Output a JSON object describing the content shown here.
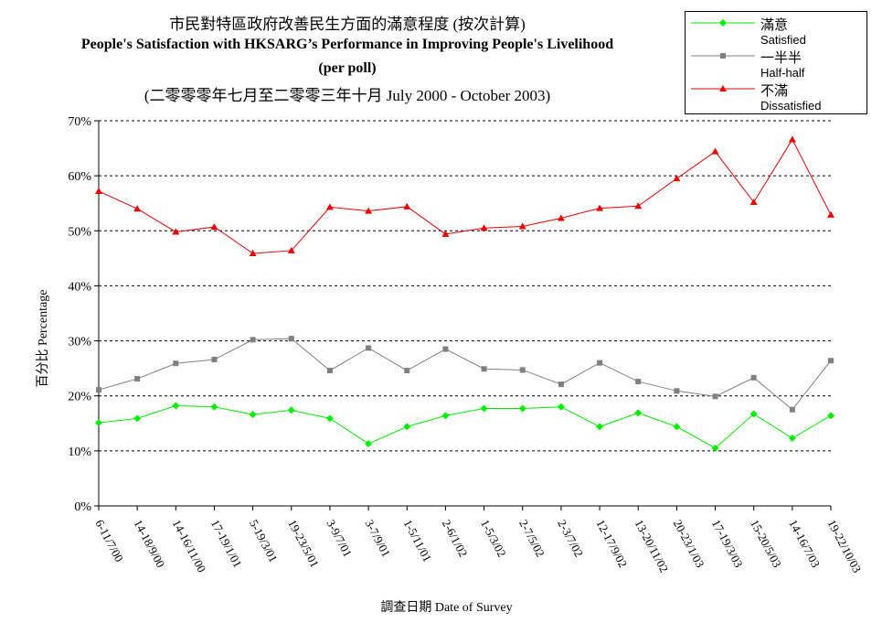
{
  "titles": {
    "line1": "市民對特區政府改善民生方面的滿意程度 (按次計算)",
    "line2": "People's Satisfaction with HKSARG’s Performance in Improving People's Livelihood",
    "line3": "(per poll)",
    "line4": "(二零零零年七月至二零零三年十月 July 2000 - October 2003)"
  },
  "legend": {
    "items": [
      {
        "zh": "滿意",
        "en": "Satisfied",
        "color": "#00ee00",
        "marker": "diamond"
      },
      {
        "zh": "一半半",
        "en": "Half-half",
        "color": "#808080",
        "marker": "square"
      },
      {
        "zh": "不滿",
        "en": "Dissatisfied",
        "color": "#ee0000",
        "marker": "triangle"
      }
    ]
  },
  "chart_data": {
    "type": "line",
    "title": "People's Satisfaction with HKSARG’s Performance in Improving People's Livelihood",
    "xlabel": "調查日期 Date of Survey",
    "ylabel": "百分比 Percentage",
    "ylim": [
      0,
      70
    ],
    "yticks": [
      "0%",
      "10%",
      "20%",
      "30%",
      "40%",
      "50%",
      "60%",
      "70%"
    ],
    "grid": true,
    "legend_position": "top-right",
    "categories": [
      "6-11/7/00",
      "14-18/9/00",
      "14-16/11/00",
      "17-19/1/01",
      "5-19/3/01",
      "19-23/5/01",
      "3-9/7/01",
      "3-7/9/01",
      "1-5/11/01",
      "2-6/1/02",
      "1-5/3/02",
      "2-7/5/02",
      "2-3/7/02",
      "12-17/9/02",
      "13-20/11/02",
      "20-23/1/03",
      "17-19/3/03",
      "15-20/5/03",
      "14-16/7/03",
      "19-22/10/03"
    ],
    "series": [
      {
        "name": "滿意 Satisfied",
        "color": "#00ee00",
        "marker": "diamond",
        "values": [
          15.1,
          15.9,
          18.2,
          18.0,
          16.6,
          17.4,
          15.9,
          11.3,
          14.4,
          16.4,
          17.7,
          17.7,
          18.0,
          14.4,
          16.9,
          14.4,
          10.5,
          16.7,
          12.3,
          16.4
        ]
      },
      {
        "name": "一半半 Half-half",
        "color": "#808080",
        "marker": "square",
        "values": [
          21.1,
          23.1,
          25.9,
          26.6,
          30.2,
          30.4,
          24.6,
          28.7,
          24.6,
          28.5,
          24.9,
          24.7,
          22.1,
          26.0,
          22.6,
          20.9,
          19.9,
          23.3,
          17.5,
          26.4
        ]
      },
      {
        "name": "不滿 Dissatisfied",
        "color": "#ee0000",
        "marker": "triangle",
        "values": [
          57.2,
          54.0,
          49.8,
          50.7,
          45.9,
          46.4,
          54.3,
          53.6,
          54.4,
          49.4,
          50.5,
          50.8,
          52.3,
          54.1,
          54.5,
          59.5,
          64.4,
          55.2,
          66.6,
          52.9
        ]
      }
    ]
  }
}
